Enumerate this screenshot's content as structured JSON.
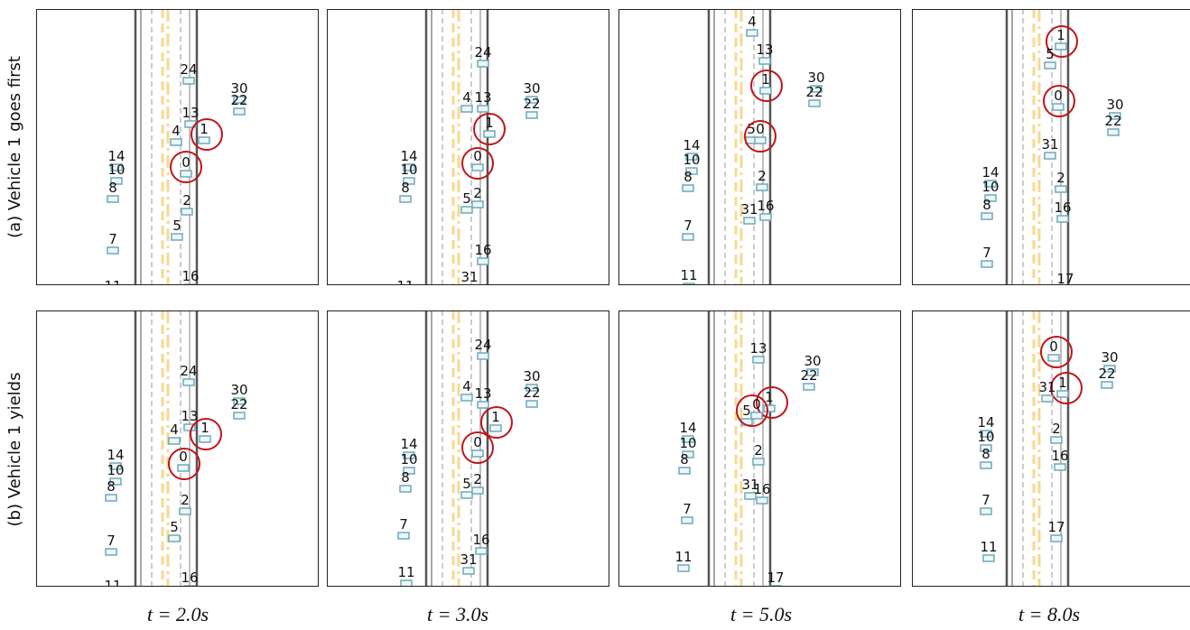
{
  "row_labels": [
    "(a) Vehicle 1 goes first",
    "(b) Vehicle 1 yields"
  ],
  "time_labels": [
    "t = 2.0s",
    "t = 3.0s",
    "t = 5.0s",
    "t = 8.0s"
  ],
  "panels": [
    {
      "vehicles": [
        "24",
        "30",
        "22",
        "13",
        "1",
        "4",
        "14",
        "10",
        "0",
        "8",
        "2",
        "5",
        "7",
        "16",
        "11"
      ]
    },
    {
      "vehicles": [
        "24",
        "30",
        "22",
        "4",
        "13",
        "1",
        "14",
        "10",
        "0",
        "8",
        "5",
        "2",
        "16",
        "11",
        "31"
      ]
    },
    {
      "vehicles": [
        "4",
        "13",
        "30",
        "22",
        "1",
        "5",
        "0",
        "14",
        "10",
        "8",
        "2",
        "31",
        "16",
        "7",
        "11"
      ]
    },
    {
      "vehicles": [
        "1",
        "5",
        "0",
        "30",
        "22",
        "31",
        "14",
        "10",
        "2",
        "8",
        "16",
        "7",
        "17"
      ]
    },
    {
      "vehicles": [
        "24",
        "30",
        "22",
        "13",
        "1",
        "4",
        "0",
        "14",
        "10",
        "8",
        "2",
        "5",
        "7",
        "16",
        "11"
      ]
    },
    {
      "vehicles": [
        "24",
        "30",
        "22",
        "4",
        "13",
        "1",
        "14",
        "10",
        "0",
        "8",
        "5",
        "2",
        "7",
        "16",
        "31",
        "11"
      ]
    },
    {
      "vehicles": [
        "13",
        "30",
        "22",
        "1",
        "0",
        "5",
        "14",
        "10",
        "8",
        "2",
        "31",
        "16",
        "7",
        "11",
        "17"
      ]
    },
    {
      "vehicles": [
        "0",
        "30",
        "22",
        "1",
        "31",
        "14",
        "10",
        "2",
        "8",
        "16",
        "7",
        "17",
        "11"
      ]
    }
  ]
}
